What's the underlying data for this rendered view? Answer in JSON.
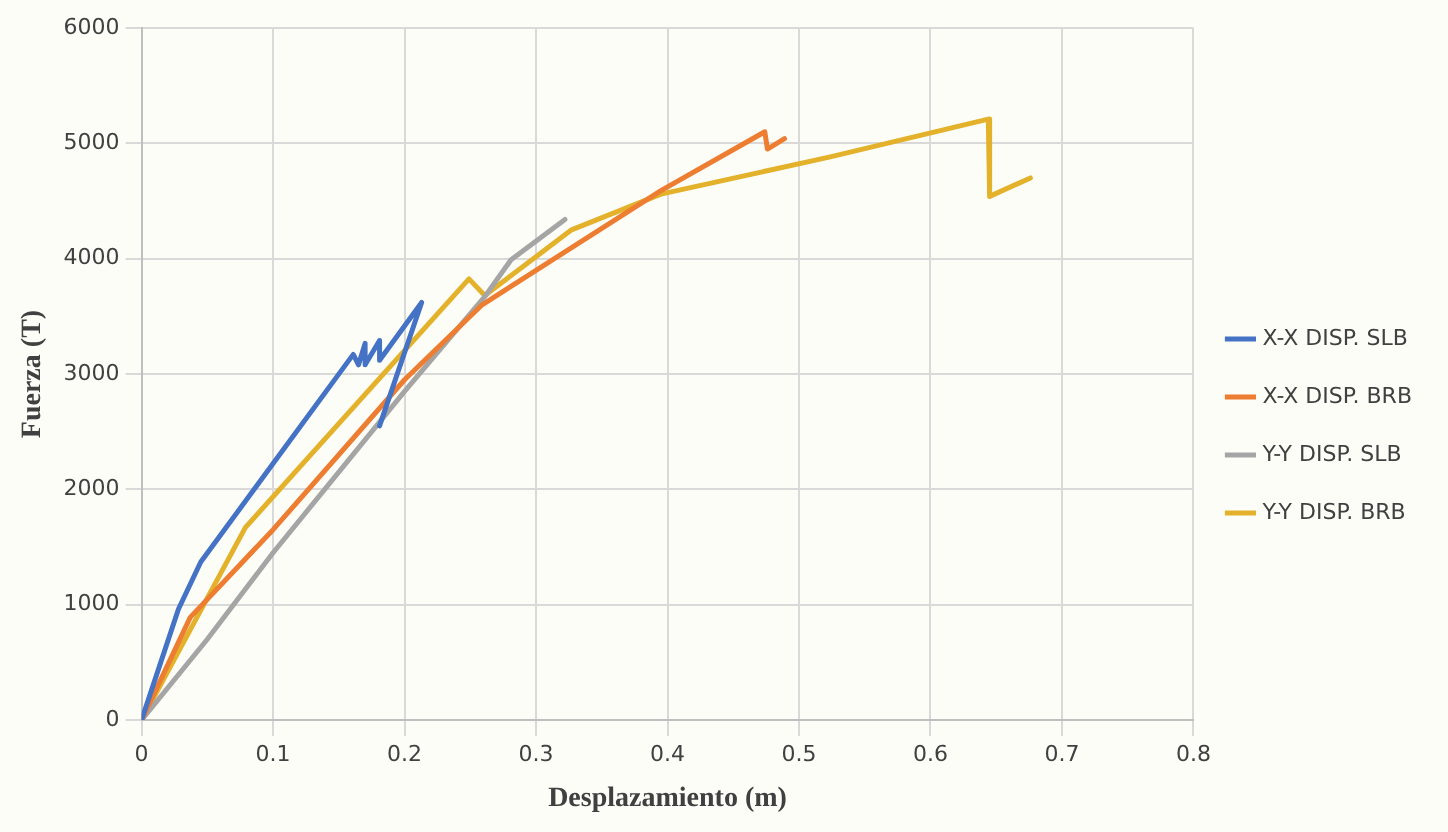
{
  "chart_data": {
    "type": "line",
    "xlabel": "Desplazamiento (m)",
    "ylabel": "Fuerza (T)",
    "xlim": [
      0,
      0.8
    ],
    "xticks": [
      0,
      0.1,
      0.2,
      0.3,
      0.4,
      0.5,
      0.6,
      0.7,
      0.8
    ],
    "ylim": [
      0,
      6000
    ],
    "yticks": [
      0,
      1000,
      2000,
      3000,
      4000,
      5000,
      6000
    ],
    "grid": true,
    "legend": "right",
    "marker": "none",
    "line_style": "solid",
    "series": [
      {
        "name": "X-X DISP. SLB",
        "color": "#4472c4",
        "x": [
          0,
          0.028,
          0.045,
          0.161,
          0.165,
          0.17,
          0.17,
          0.181,
          0.181,
          0.213,
          0.181
        ],
        "values": [
          0,
          960,
          1370,
          3170,
          3080,
          3265,
          3080,
          3290,
          3120,
          3620,
          2550
        ]
      },
      {
        "name": "X-X DISP. BRB",
        "color": "#ed7d31",
        "x": [
          0,
          0.037,
          0.1,
          0.2,
          0.259,
          0.395,
          0.474,
          0.476,
          0.489
        ],
        "values": [
          0,
          890,
          1650,
          2950,
          3600,
          4590,
          5100,
          4950,
          5040
        ]
      },
      {
        "name": "Y-Y DISP. SLB",
        "color": "#a5a5a5",
        "x": [
          0,
          0.05,
          0.1,
          0.2,
          0.261,
          0.281,
          0.322
        ],
        "values": [
          0,
          700,
          1450,
          2850,
          3670,
          3990,
          4340
        ]
      },
      {
        "name": "Y-Y DISP. BRB",
        "color": "#e3b12a",
        "x": [
          0,
          0.079,
          0.249,
          0.261,
          0.327,
          0.395,
          0.523,
          0.644,
          0.645,
          0.676
        ],
        "values": [
          0,
          1670,
          3825,
          3680,
          4250,
          4560,
          4880,
          5210,
          4540,
          4700
        ]
      }
    ]
  }
}
